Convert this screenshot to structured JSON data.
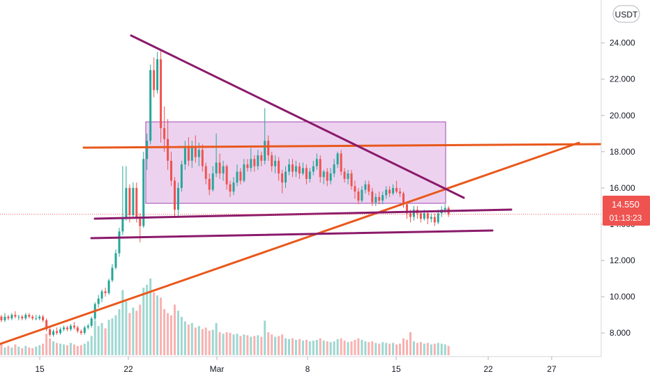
{
  "currency": "USDT",
  "price": {
    "value": "14.550",
    "countdown": "01:13:23"
  },
  "colors": {
    "up": "#26a69a",
    "down": "#ef5350",
    "trend": "#e8581c",
    "triangle": "#8b1a6b",
    "box_fill": "#e6c3ea",
    "box_stroke": "#a04ab0",
    "price_line": "#ef5350"
  },
  "chart_data": {
    "type": "candlestick",
    "x_ticks": [
      "15",
      "22",
      "Mar",
      "8",
      "15",
      "22",
      "27"
    ],
    "y_ticks": [
      "24.000",
      "22.000",
      "20.000",
      "18.000",
      "16.000",
      "14.000",
      "12.000",
      "10.000",
      "8.000"
    ],
    "ylim": [
      6.7,
      25.6
    ],
    "last_price": 14.55,
    "candles": [
      [
        8.9,
        8.7,
        9.0,
        8.6
      ],
      [
        8.7,
        8.9,
        9.1,
        8.6
      ],
      [
        8.9,
        8.8,
        9.0,
        8.7
      ],
      [
        8.8,
        9.0,
        9.1,
        8.7
      ],
      [
        9.0,
        8.9,
        9.2,
        8.8
      ],
      [
        8.9,
        8.9,
        9.0,
        8.7
      ],
      [
        8.9,
        8.8,
        9.0,
        8.7
      ],
      [
        8.8,
        9.0,
        9.1,
        8.7
      ],
      [
        9.0,
        8.9,
        9.1,
        8.8
      ],
      [
        8.9,
        8.8,
        9.0,
        8.7
      ],
      [
        8.8,
        8.8,
        9.0,
        8.7
      ],
      [
        8.8,
        8.9,
        9.0,
        8.7
      ],
      [
        8.9,
        8.7,
        9.0,
        8.6
      ],
      [
        8.7,
        8.2,
        8.8,
        8.1
      ],
      [
        8.2,
        7.9,
        8.3,
        7.8
      ],
      [
        7.9,
        8.1,
        8.2,
        7.8
      ],
      [
        8.1,
        8.0,
        8.3,
        7.9
      ],
      [
        8.0,
        8.2,
        8.3,
        7.9
      ],
      [
        8.2,
        8.3,
        8.4,
        8.1
      ],
      [
        8.3,
        8.2,
        8.4,
        8.1
      ],
      [
        8.2,
        8.4,
        8.5,
        8.1
      ],
      [
        8.4,
        8.3,
        8.6,
        8.2
      ],
      [
        8.3,
        8.1,
        8.4,
        8.0
      ],
      [
        8.1,
        8.0,
        8.2,
        7.9
      ],
      [
        8.0,
        8.3,
        8.4,
        7.9
      ],
      [
        8.3,
        8.4,
        8.5,
        8.2
      ],
      [
        8.4,
        8.8,
        8.9,
        8.3
      ],
      [
        8.8,
        9.6,
        9.7,
        8.7
      ],
      [
        9.6,
        9.9,
        10.1,
        9.4
      ],
      [
        9.9,
        10.3,
        10.4,
        9.7
      ],
      [
        10.3,
        10.2,
        10.5,
        10.0
      ],
      [
        10.2,
        10.9,
        11.0,
        10.1
      ],
      [
        10.9,
        11.6,
        11.8,
        10.8
      ],
      [
        11.6,
        12.4,
        12.6,
        11.5
      ],
      [
        12.4,
        13.6,
        13.8,
        12.2
      ],
      [
        13.6,
        14.3,
        17.2,
        13.4
      ],
      [
        14.3,
        16.0,
        17.2,
        14.2
      ],
      [
        16.0,
        14.5,
        16.2,
        14.1
      ],
      [
        14.5,
        16.0,
        16.3,
        14.3
      ],
      [
        16.0,
        14.4,
        16.3,
        14.1
      ],
      [
        14.4,
        13.9,
        14.6,
        13.0
      ],
      [
        13.9,
        17.6,
        18.0,
        13.8
      ],
      [
        17.6,
        18.6,
        19.0,
        17.0
      ],
      [
        18.6,
        22.5,
        22.8,
        18.4
      ],
      [
        22.5,
        21.4,
        23.2,
        21.0
      ],
      [
        21.4,
        23.1,
        23.5,
        21.2
      ],
      [
        23.1,
        19.3,
        23.6,
        18.5
      ],
      [
        19.3,
        18.7,
        20.5,
        18.0
      ],
      [
        18.7,
        17.5,
        19.8,
        17.0
      ],
      [
        17.5,
        16.4,
        18.0,
        16.1
      ],
      [
        16.4,
        14.8,
        16.6,
        14.4
      ],
      [
        14.8,
        16.0,
        16.3,
        14.4
      ],
      [
        16.0,
        17.3,
        17.5,
        15.8
      ],
      [
        17.3,
        18.2,
        18.6,
        17.0
      ],
      [
        18.2,
        17.5,
        18.8,
        17.2
      ],
      [
        17.5,
        18.3,
        18.6,
        17.1
      ],
      [
        18.3,
        17.7,
        18.9,
        17.4
      ],
      [
        17.7,
        18.1,
        18.5,
        17.2
      ],
      [
        18.1,
        17.2,
        18.4,
        16.9
      ],
      [
        17.2,
        16.5,
        17.4,
        16.2
      ],
      [
        16.5,
        15.9,
        16.8,
        15.6
      ],
      [
        15.9,
        16.8,
        17.2,
        15.8
      ],
      [
        16.8,
        17.4,
        19.0,
        16.6
      ],
      [
        17.4,
        16.8,
        17.9,
        16.5
      ],
      [
        16.8,
        17.2,
        17.5,
        16.4
      ],
      [
        17.2,
        16.2,
        17.3,
        15.9
      ],
      [
        16.2,
        15.8,
        16.4,
        15.5
      ],
      [
        15.8,
        16.3,
        16.6,
        15.6
      ],
      [
        16.3,
        16.9,
        17.3,
        16.1
      ],
      [
        16.9,
        16.4,
        17.1,
        16.2
      ],
      [
        16.4,
        17.3,
        17.6,
        16.3
      ],
      [
        17.3,
        17.1,
        17.6,
        16.9
      ],
      [
        17.1,
        17.6,
        18.2,
        16.9
      ],
      [
        17.6,
        17.2,
        17.8,
        16.9
      ],
      [
        17.2,
        17.8,
        18.1,
        17.0
      ],
      [
        17.8,
        17.5,
        18.0,
        17.2
      ],
      [
        17.5,
        18.6,
        20.4,
        17.3
      ],
      [
        18.6,
        17.8,
        18.9,
        17.5
      ],
      [
        17.8,
        17.2,
        18.0,
        16.9
      ],
      [
        17.2,
        17.5,
        17.8,
        16.8
      ],
      [
        17.5,
        16.8,
        17.7,
        16.4
      ],
      [
        16.8,
        16.3,
        17.0,
        15.7
      ],
      [
        16.3,
        16.9,
        17.2,
        16.0
      ],
      [
        16.9,
        17.3,
        17.6,
        16.7
      ],
      [
        17.3,
        16.9,
        17.6,
        16.6
      ],
      [
        16.9,
        17.2,
        17.5,
        16.6
      ],
      [
        17.2,
        16.8,
        17.4,
        16.5
      ],
      [
        16.8,
        17.1,
        17.4,
        16.7
      ],
      [
        17.1,
        16.5,
        17.3,
        16.2
      ],
      [
        16.5,
        16.9,
        17.1,
        16.3
      ],
      [
        16.9,
        17.2,
        17.5,
        16.7
      ],
      [
        17.2,
        17.6,
        17.9,
        17.0
      ],
      [
        17.6,
        16.6,
        17.8,
        16.3
      ],
      [
        16.6,
        16.9,
        17.0,
        16.2
      ],
      [
        16.9,
        16.4,
        17.1,
        16.1
      ],
      [
        16.4,
        16.8,
        17.1,
        16.2
      ],
      [
        16.8,
        17.3,
        17.6,
        16.6
      ],
      [
        17.3,
        17.9,
        18.0,
        17.1
      ],
      [
        17.9,
        16.9,
        18.1,
        16.7
      ],
      [
        16.9,
        16.5,
        17.1,
        16.3
      ],
      [
        16.5,
        16.8,
        17.0,
        16.2
      ],
      [
        16.8,
        16.1,
        17.0,
        15.9
      ],
      [
        16.1,
        15.8,
        16.4,
        15.4
      ],
      [
        15.8,
        15.3,
        16.0,
        15.1
      ],
      [
        15.3,
        15.9,
        16.1,
        15.2
      ],
      [
        15.9,
        16.2,
        16.4,
        15.7
      ],
      [
        16.2,
        15.8,
        16.4,
        15.6
      ],
      [
        15.8,
        15.2,
        16.0,
        15.0
      ],
      [
        15.2,
        15.5,
        15.7,
        15.0
      ],
      [
        15.5,
        15.3,
        15.8,
        15.1
      ],
      [
        15.3,
        15.6,
        15.8,
        15.1
      ],
      [
        15.6,
        15.9,
        16.1,
        15.4
      ],
      [
        15.9,
        15.7,
        16.1,
        15.5
      ],
      [
        15.7,
        16.0,
        16.2,
        15.6
      ],
      [
        16.0,
        15.8,
        16.4,
        15.7
      ],
      [
        15.8,
        15.7,
        16.0,
        15.5
      ],
      [
        15.7,
        15.1,
        15.8,
        14.9
      ],
      [
        15.1,
        14.6,
        15.2,
        14.3
      ],
      [
        14.6,
        14.4,
        14.8,
        14.1
      ],
      [
        14.4,
        14.8,
        15.0,
        14.2
      ],
      [
        14.8,
        14.6,
        15.0,
        14.3
      ],
      [
        14.6,
        14.3,
        14.7,
        14.1
      ],
      [
        14.3,
        14.6,
        14.8,
        14.2
      ],
      [
        14.6,
        14.3,
        14.7,
        14.0
      ],
      [
        14.3,
        14.4,
        14.6,
        14.1
      ],
      [
        14.4,
        14.1,
        14.6,
        13.9
      ],
      [
        14.1,
        14.6,
        14.8,
        14.0
      ],
      [
        14.6,
        14.8,
        15.0,
        14.4
      ],
      [
        14.8,
        14.9,
        15.1,
        14.6
      ],
      [
        14.9,
        14.55,
        15.0,
        14.4
      ]
    ],
    "volumes": [
      0.15,
      0.1,
      0.12,
      0.1,
      0.14,
      0.11,
      0.09,
      0.12,
      0.1,
      0.09,
      0.11,
      0.13,
      0.15,
      0.28,
      0.22,
      0.18,
      0.16,
      0.15,
      0.14,
      0.13,
      0.16,
      0.14,
      0.12,
      0.13,
      0.15,
      0.18,
      0.25,
      0.45,
      0.38,
      0.42,
      0.35,
      0.46,
      0.48,
      0.52,
      0.6,
      0.85,
      0.7,
      0.55,
      0.62,
      0.58,
      0.66,
      0.88,
      0.92,
      1.0,
      0.82,
      0.78,
      0.75,
      0.6,
      0.55,
      0.52,
      0.66,
      0.58,
      0.5,
      0.44,
      0.4,
      0.42,
      0.36,
      0.38,
      0.34,
      0.36,
      0.32,
      0.33,
      0.42,
      0.3,
      0.28,
      0.3,
      0.29,
      0.27,
      0.28,
      0.25,
      0.27,
      0.26,
      0.24,
      0.25,
      0.26,
      0.24,
      0.45,
      0.3,
      0.27,
      0.24,
      0.25,
      0.27,
      0.22,
      0.21,
      0.22,
      0.2,
      0.21,
      0.19,
      0.2,
      0.18,
      0.19,
      0.2,
      0.22,
      0.19,
      0.18,
      0.17,
      0.18,
      0.21,
      0.22,
      0.19,
      0.17,
      0.18,
      0.2,
      0.22,
      0.2,
      0.18,
      0.17,
      0.18,
      0.16,
      0.15,
      0.17,
      0.16,
      0.15,
      0.16,
      0.14,
      0.15,
      0.22,
      0.2,
      0.3,
      0.18,
      0.16,
      0.17,
      0.15,
      0.16,
      0.14,
      0.15,
      0.16,
      0.15,
      0.14,
      0.12
    ]
  }
}
